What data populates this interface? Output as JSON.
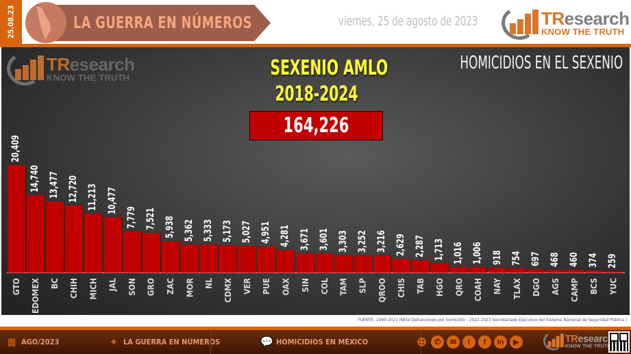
{
  "header": {
    "date_tag": "25.08.23",
    "banner_title": "LA GUERRA EN NÚMEROS",
    "date_text": "viernes, 25 de agosto de 2023",
    "logo": {
      "brand_prefix": "TR",
      "brand_suffix": "esearch",
      "tagline": "KNOW THE TRUTH"
    }
  },
  "panel": {
    "title_line1": "SEXENIO AMLO",
    "title_line2": "2018-2024",
    "total": "164,226",
    "right_title": "HOMICIDIOS EN EL SEXENIO",
    "watermark": {
      "brand_prefix": "TR",
      "brand_suffix": "esearch",
      "tagline": "KNOW THE TRUTH"
    }
  },
  "source": "FUENTE: 1990-2021 INEGI Defunciones por homicidio - 2022-2023 Secretariado Ejecutivo del Sistema Nacional de Seguridad Pública |",
  "footer": {
    "items": [
      {
        "icon": "calendar-clock-icon",
        "label": "AGO/2023"
      },
      {
        "icon": "map-pin-icon",
        "label": "LA GUERRA EN NÚMEROS"
      },
      {
        "icon": "chat-chart-icon",
        "label": "HOMICIDIOS EN MÉXICO"
      }
    ],
    "social": [
      "globe-icon",
      "phone-icon",
      "email-icon",
      "twitter-icon",
      "facebook-icon",
      "linkedin-icon",
      "youtube-icon"
    ],
    "logo": {
      "brand_prefix": "TR",
      "brand_suffix": "esearch",
      "tagline": "KNOW THE TRUTH"
    }
  },
  "colors": {
    "accent": "#d9640f",
    "bar": "#c00000",
    "title_yellow": "#ffff33",
    "banner": "#9c5e4a"
  },
  "chart_data": {
    "type": "bar",
    "title": "HOMICIDIOS EN EL SEXENIO — SEXENIO AMLO 2018-2024",
    "total": 164226,
    "xlabel": "",
    "ylabel": "",
    "grid": false,
    "legend": "none",
    "categories": [
      "GTO",
      "EDOMEX",
      "BC",
      "CHIH",
      "MICH",
      "JAL",
      "SON",
      "GRO",
      "ZAC",
      "MOR",
      "NL",
      "CDMX",
      "VER",
      "PUE",
      "OAX",
      "SIN",
      "COL",
      "TAM",
      "SLP",
      "QROO",
      "CHIS",
      "TAB",
      "HGO",
      "QRO",
      "COAH",
      "NAY",
      "TLAX",
      "DGO",
      "AGS",
      "CAMP",
      "BCS",
      "YUC"
    ],
    "values": [
      20409,
      14740,
      13477,
      12720,
      11213,
      10477,
      7779,
      7521,
      5938,
      5362,
      5333,
      5173,
      5027,
      4951,
      4281,
      3671,
      3601,
      3303,
      3252,
      3216,
      2629,
      2287,
      1713,
      1016,
      1006,
      918,
      754,
      697,
      468,
      460,
      374,
      259
    ],
    "labels": [
      "20,409",
      "14,740",
      "13,477",
      "12,720",
      "11,213",
      "10,477",
      "7,779",
      "7,521",
      "5,938",
      "5,362",
      "5,333",
      "5,173",
      "5,027",
      "4,951",
      "4,281",
      "3,671",
      "3,601",
      "3,303",
      "3,252",
      "3,216",
      "2,629",
      "2,287",
      "1,713",
      "1,016",
      "1,006",
      "918",
      "754",
      "697",
      "468",
      "460",
      "374",
      "259"
    ],
    "ylim": [
      0,
      20409
    ]
  }
}
